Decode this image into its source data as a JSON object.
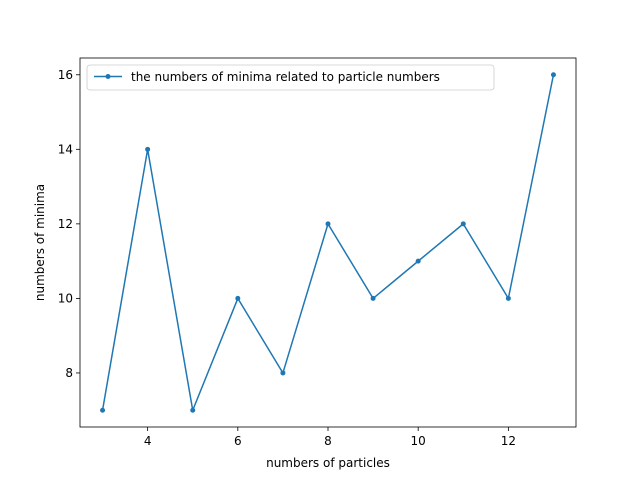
{
  "chart_data": {
    "type": "line",
    "title": "",
    "xlabel": "numbers of particles",
    "ylabel": "numbers of minima",
    "xlim": [
      2.5,
      13.5
    ],
    "ylim": [
      6.55,
      16.45
    ],
    "xticks": [
      4,
      6,
      8,
      10,
      12
    ],
    "yticks": [
      8,
      10,
      12,
      14,
      16
    ],
    "grid": false,
    "legend_position": "upper-left",
    "series": [
      {
        "name": "the numbers of minima related to particle numbers",
        "color": "#1f77b4",
        "marker": "point",
        "x": [
          3,
          4,
          5,
          6,
          7,
          8,
          9,
          10,
          11,
          12,
          13
        ],
        "y": [
          7,
          14,
          7,
          10,
          8,
          12,
          10,
          11,
          12,
          10,
          16
        ]
      }
    ]
  }
}
